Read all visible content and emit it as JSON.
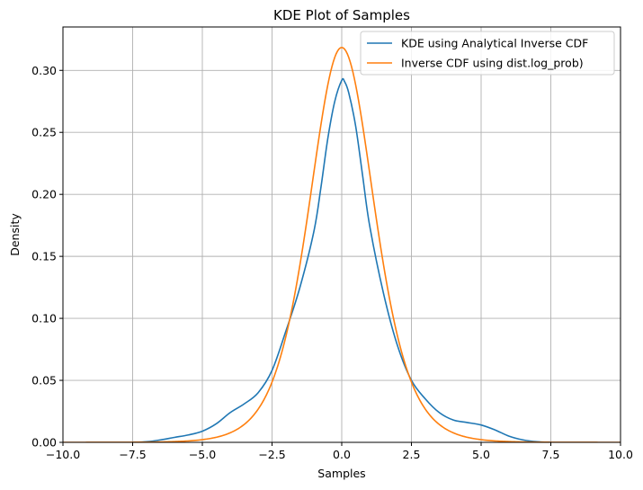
{
  "chart_data": {
    "type": "line",
    "title": "KDE Plot of Samples",
    "xlabel": "Samples",
    "ylabel": "Density",
    "xlim": [
      -10,
      10
    ],
    "ylim": [
      0,
      0.335
    ],
    "xticks": [
      -10,
      -7.5,
      -5,
      -2.5,
      0,
      2.5,
      5,
      7.5,
      10
    ],
    "xtick_labels": [
      "−10.0",
      "−7.5",
      "−5.0",
      "−2.5",
      "0.0",
      "2.5",
      "5.0",
      "7.5",
      "10.0"
    ],
    "yticks": [
      0,
      0.05,
      0.1,
      0.15,
      0.2,
      0.25,
      0.3
    ],
    "ytick_labels": [
      "0.00",
      "0.05",
      "0.10",
      "0.15",
      "0.20",
      "0.25",
      "0.30"
    ],
    "grid": true,
    "legend_position": "top-right",
    "series": [
      {
        "name": "KDE using Analytical Inverse CDF",
        "color": "#1f77b4",
        "points": [
          [
            -7.5,
            0.0
          ],
          [
            -7.0,
            0.0005
          ],
          [
            -6.5,
            0.002
          ],
          [
            -6.0,
            0.004
          ],
          [
            -5.5,
            0.006
          ],
          [
            -5.0,
            0.009
          ],
          [
            -4.5,
            0.015
          ],
          [
            -4.0,
            0.024
          ],
          [
            -3.5,
            0.031
          ],
          [
            -3.0,
            0.04
          ],
          [
            -2.5,
            0.058
          ],
          [
            -2.0,
            0.09
          ],
          [
            -1.5,
            0.125
          ],
          [
            -1.0,
            0.17
          ],
          [
            -0.75,
            0.205
          ],
          [
            -0.5,
            0.245
          ],
          [
            -0.25,
            0.275
          ],
          [
            0.0,
            0.292
          ],
          [
            0.1,
            0.291
          ],
          [
            0.25,
            0.282
          ],
          [
            0.5,
            0.255
          ],
          [
            0.75,
            0.215
          ],
          [
            1.0,
            0.175
          ],
          [
            1.5,
            0.12
          ],
          [
            2.0,
            0.078
          ],
          [
            2.5,
            0.05
          ],
          [
            3.0,
            0.035
          ],
          [
            3.5,
            0.024
          ],
          [
            4.0,
            0.018
          ],
          [
            4.5,
            0.016
          ],
          [
            5.0,
            0.014
          ],
          [
            5.5,
            0.01
          ],
          [
            6.0,
            0.005
          ],
          [
            6.5,
            0.002
          ],
          [
            7.0,
            0.0005
          ],
          [
            7.5,
            0.0
          ]
        ]
      },
      {
        "name": "Inverse CDF using dist.log_prob)",
        "color": "#ff7f0e",
        "distribution": {
          "kind": "logistic",
          "loc": 0,
          "scale": 0.785
        }
      }
    ]
  }
}
